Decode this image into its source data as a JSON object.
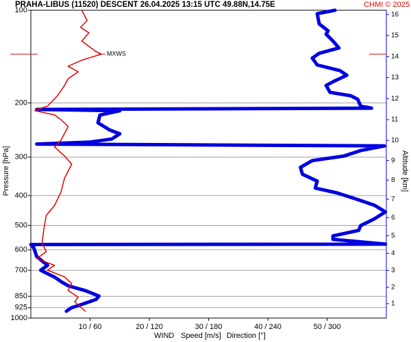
{
  "chart_data": {
    "type": "line",
    "title": "PRAHA-LIBUS (11520)   DESCENT   26.04.2025 13:15 UTC  49.88N,14.75E",
    "credit": "CHMI © 2025",
    "ylabel": "Pressure [hPa]",
    "y2label": "Altitude [km]",
    "xlabel": "WIND",
    "ylim": [
      1000,
      100
    ],
    "yscale": "log",
    "yticks": [
      100,
      200,
      300,
      400,
      500,
      600,
      700,
      850,
      925,
      1000
    ],
    "y2lim": [
      0.1,
      16.2
    ],
    "y2ticks": [
      1,
      2,
      3,
      4,
      5,
      6,
      7,
      8,
      9,
      10,
      11,
      12,
      13,
      14,
      15,
      16
    ],
    "y2color": "#0000e0",
    "xlim": [
      0,
      60
    ],
    "x2lim": [
      0,
      360
    ],
    "xticks": [
      {
        "value": 10,
        "label": "10 / 60"
      },
      {
        "value": 20,
        "label": "20 / 120"
      },
      {
        "value": 30,
        "label": "30 / 180"
      },
      {
        "value": 40,
        "label": "40 / 240"
      },
      {
        "value": 50,
        "label": "50 / 300"
      }
    ],
    "grid": true,
    "series": [
      {
        "name": "Speed [m/s]",
        "color": "#e00000",
        "axis": "x",
        "x": [
          8.6,
          9.5,
          8.4,
          9.8,
          8.6,
          10.9,
          11.9,
          8.6,
          6.3,
          8.0,
          6.3,
          5.7,
          4.5,
          2.8,
          1.0,
          0.7,
          4.0,
          5.1,
          6.3,
          5.7,
          5.1,
          4.0,
          5.7,
          6.9,
          5.7,
          5.1,
          4.0,
          2.6,
          2.2,
          1.9,
          2.6,
          1.0,
          4.0,
          2.8,
          5.7,
          6.9,
          6.3,
          8.0,
          7.4,
          9.2
        ],
        "y": [
          100,
          108,
          113.6,
          118.4,
          125.9,
          135.9,
          138.8,
          145.3,
          152,
          158.5,
          166.8,
          175.5,
          189.6,
          205,
          210,
          212,
          218.8,
          226.8,
          238.7,
          251.2,
          264.3,
          278.3,
          297.5,
          316.2,
          350.7,
          388.9,
          430.7,
          464.2,
          514.4,
          569.9,
          608.8,
          640.8,
          674.4,
          698.9,
          734.8,
          773,
          813.6,
          855.3,
          885.5,
          950
        ]
      },
      {
        "name": "Direction [°]",
        "color": "#0000e0",
        "axis": "x2",
        "x": [
          308,
          290,
          292,
          301,
          299,
          306,
          312,
          292,
          285,
          290,
          313,
          320,
          308,
          299,
          303,
          324,
          331,
          334,
          345,
          6,
          90,
          70,
          68,
          80,
          90,
          82,
          60,
          6,
          358,
          334,
          317,
          285,
          273,
          275,
          290,
          288,
          310,
          331,
          348,
          359,
          348,
          334,
          332,
          306,
          306,
          359,
          0,
          3,
          6,
          10,
          17,
          10,
          17,
          24,
          31,
          38,
          55,
          69,
          66,
          52,
          41,
          36
        ],
        "y": [
          100,
          102.6,
          110.8,
          116.6,
          119.6,
          125.9,
          132.6,
          138,
          143,
          150.6,
          157,
          162.6,
          169.5,
          175.5,
          184.8,
          189.6,
          194.6,
          205,
          208,
          210,
          212,
          219,
          232,
          245,
          252,
          262,
          268,
          272,
          275.9,
          285.6,
          297.5,
          308,
          324,
          341,
          359,
          378,
          392,
          412,
          430,
          452,
          476,
          501,
          519,
          541,
          555,
          575,
          577,
          591,
          631,
          647,
          674,
          699,
          718,
          736,
          763,
          786,
          814,
          848,
          870,
          902,
          926,
          950
        ]
      }
    ],
    "annotations": [
      {
        "text": "MXWS",
        "y": 138.8,
        "x": 11.9,
        "color": "#e00000"
      }
    ]
  }
}
